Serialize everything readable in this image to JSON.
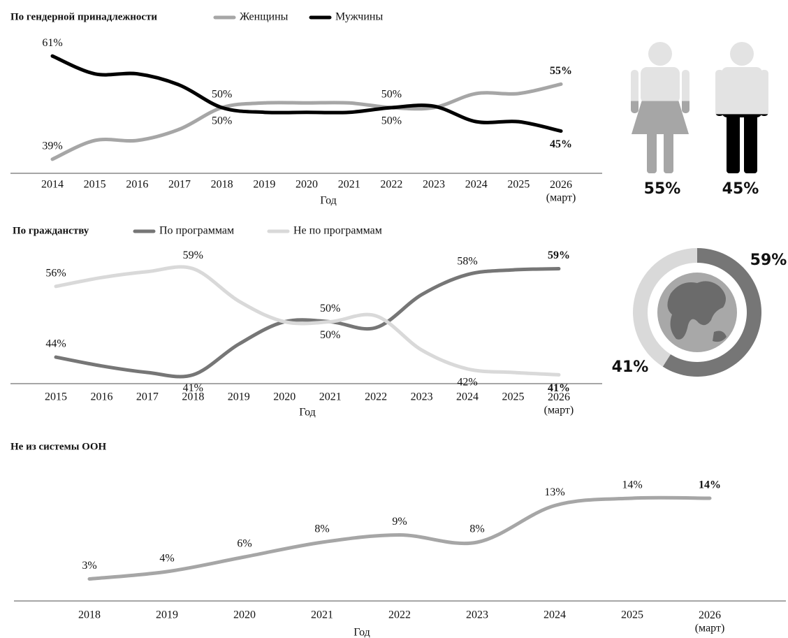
{
  "chart_data": [
    {
      "type": "line",
      "title": "По гендерной принадлежности",
      "xlabel": "Год",
      "categories": [
        "2014",
        "2015",
        "2016",
        "2017",
        "2018",
        "2019",
        "2020",
        "2021",
        "2022",
        "2023",
        "2024",
        "2025",
        "2026\n(март)"
      ],
      "series": [
        {
          "name": "Женщины",
          "color": "#a6a6a6",
          "values": [
            39,
            43,
            43,
            45.4,
            50,
            51,
            51,
            51,
            50,
            50,
            53,
            53,
            55
          ],
          "value_labels": [
            "39%",
            null,
            null,
            null,
            "50%",
            null,
            null,
            null,
            "50%",
            null,
            null,
            null,
            "55%"
          ]
        },
        {
          "name": "Мужчины",
          "color": "#000000",
          "values": [
            61,
            57.2,
            57.2,
            54.8,
            50,
            49,
            49,
            49,
            50,
            50.3,
            47,
            47,
            45
          ],
          "value_labels": [
            "61%",
            null,
            null,
            null,
            "50%",
            null,
            null,
            null,
            "50%",
            null,
            null,
            null,
            "45%"
          ]
        }
      ],
      "ylim": [
        36,
        64
      ],
      "legend": "top"
    },
    {
      "type": "pictogram",
      "values": [
        55,
        45
      ],
      "value_labels": [
        "55%",
        "45%"
      ],
      "colors": [
        "#a6a6a6",
        "#000000"
      ]
    },
    {
      "type": "line",
      "title": "По гражданству",
      "xlabel": "Год",
      "categories": [
        "2015",
        "2016",
        "2017",
        "2018",
        "2019",
        "2020",
        "2021",
        "2022",
        "2023",
        "2024",
        "2025",
        "2026\n(март)"
      ],
      "series": [
        {
          "name": "По программам",
          "color": "#767676",
          "values": [
            44,
            42.5,
            41.4,
            41,
            46.2,
            50,
            50,
            49,
            54.6,
            58,
            58.8,
            59
          ],
          "value_labels": [
            "44%",
            null,
            null,
            "41%",
            null,
            null,
            "50%",
            null,
            null,
            "58%",
            null,
            "59%"
          ]
        },
        {
          "name": "Не по программам",
          "color": "#d9d9d9",
          "values": [
            56,
            57.5,
            58.5,
            59,
            53.5,
            50,
            50,
            51,
            45.2,
            42,
            41.4,
            41
          ],
          "value_labels": [
            "56%",
            null,
            null,
            "59%",
            null,
            null,
            "50%",
            null,
            null,
            "42%",
            null,
            "41%"
          ]
        }
      ],
      "ylim": [
        39.5,
        62.5
      ],
      "legend": "top"
    },
    {
      "type": "donut",
      "values": [
        59,
        41
      ],
      "value_labels": [
        "59%",
        "41%"
      ],
      "colors": [
        "#767676",
        "#d9d9d9"
      ]
    },
    {
      "type": "line",
      "title": "Не из системы ООН",
      "xlabel": "Год",
      "categories": [
        "2018",
        "2019",
        "2020",
        "2021",
        "2022",
        "2023",
        "2024",
        "2025",
        "2026\n(март)"
      ],
      "values": [
        3,
        4,
        6,
        8,
        9,
        8,
        13,
        14,
        14
      ],
      "value_labels": [
        "3%",
        "4%",
        "6%",
        "8%",
        "9%",
        "8%",
        "13%",
        "14%",
        "14%"
      ],
      "color": "#a6a6a6",
      "ylim": [
        0,
        16
      ]
    }
  ]
}
